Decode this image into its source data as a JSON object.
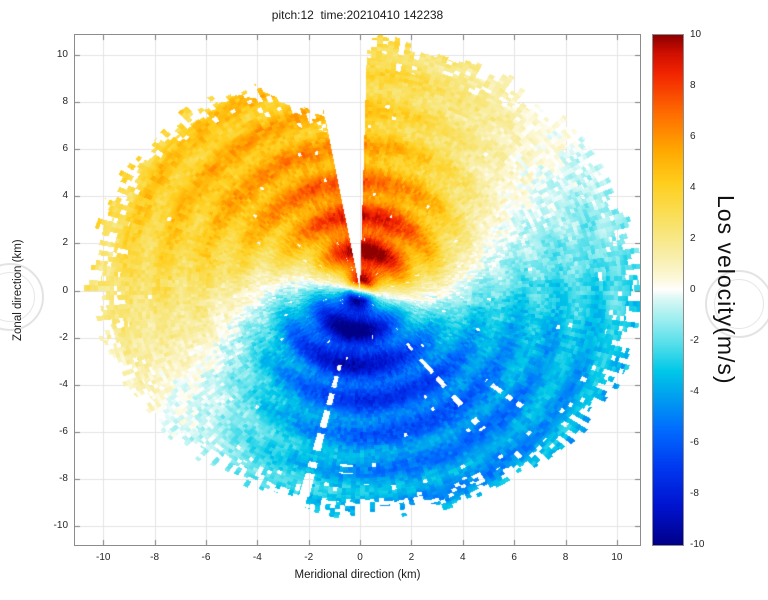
{
  "chart_data": {
    "type": "heatmap",
    "subtype": "doppler-lidar-ppi-scan",
    "title": "pitch:12  time:20210410 142238",
    "xlabel": "Meridional direction (km)",
    "ylabel": "Zonal direction (km)",
    "xlim": [
      -11.1,
      10.9
    ],
    "ylim": [
      -10.8,
      10.85
    ],
    "xticks": [
      -10,
      -8,
      -6,
      -4,
      -2,
      0,
      2,
      4,
      6,
      8,
      10
    ],
    "yticks": [
      -10,
      -8,
      -6,
      -4,
      -2,
      0,
      2,
      4,
      6,
      8,
      10
    ],
    "grid": true,
    "colorbar": {
      "label": "Los velocity(m/s)",
      "range": [
        -10,
        10
      ],
      "ticks": [
        10,
        8,
        6,
        4,
        2,
        0,
        -2,
        -4,
        -6,
        -8,
        -10
      ]
    },
    "colormap": {
      "values": [
        -10,
        -8.5,
        -7,
        -5.5,
        -4.2,
        -3.2,
        -2.2,
        -1.2,
        -0.4,
        0,
        0.4,
        1.2,
        2.2,
        3.2,
        4.2,
        5.5,
        7,
        8.5,
        9.3,
        10
      ],
      "colors": [
        "#000089",
        "#0014d0",
        "#0038f0",
        "#006cff",
        "#00a0f0",
        "#00c8e8",
        "#4fdeea",
        "#9aeef0",
        "#d6f8f5",
        "#ffffff",
        "#fdfadf",
        "#f9f0b0",
        "#f8e77e",
        "#fbdc4c",
        "#ffcf1e",
        "#ffa800",
        "#ff6a00",
        "#f32500",
        "#d01000",
        "#8f0000"
      ]
    },
    "field_model": {
      "description": "Line-of-sight velocity PPI scan: v(r,az) = A(r)*(1+ring)*cos(az-dir(r)) + speckle; az clockwise from +y axis. Positive (red) lobe toward N/NNW, negative (blue) lobe toward S/SSE.",
      "radius_km": [
        0,
        1,
        2,
        3,
        4,
        5,
        6,
        7,
        8,
        9,
        10,
        11.5
      ],
      "amplitude_ms": [
        9.5,
        9.5,
        9.0,
        8.0,
        7.0,
        6.2,
        5.6,
        5.1,
        4.7,
        4.4,
        4.1,
        3.8
      ],
      "lobe_azimuth_deg": [
        15,
        13,
        10,
        5,
        -5,
        -15,
        -23,
        -30,
        -33,
        -35,
        -37,
        -38
      ],
      "ring_modulation": {
        "amplitude": 0.18,
        "wavenumber": 4.2,
        "phase": 0.6
      },
      "speckle_ms": 1.2,
      "beam_deg": 1.2,
      "gate_km": 0.15,
      "max_range_azimuth_deg": [
        -180,
        -150,
        -120,
        -90,
        -60,
        -40,
        -25,
        -15,
        -10,
        2,
        15,
        30,
        60,
        90,
        120,
        150,
        180
      ],
      "max_range_km": [
        9.3,
        9.0,
        9.6,
        10.3,
        10.2,
        9.9,
        9.3,
        7.8,
        7.5,
        10.7,
        10.3,
        10.4,
        10.5,
        10.9,
        10.3,
        9.6,
        9.3
      ],
      "edge_jitter_km": 0.9,
      "gaps": [
        {
          "type": "wedge",
          "az_from": -10.5,
          "az_to": 1.5
        },
        {
          "type": "dashed-ray",
          "az_center": -166,
          "az_width": 2.6,
          "r_from": 3.2,
          "r_to": 9.4,
          "duty": 0.6
        },
        {
          "type": "dashed-ray",
          "az_center": 141,
          "az_width": 2.2,
          "r_from": 2.9,
          "r_to": 7.6,
          "duty": 0.55
        },
        {
          "type": "dashed-ray",
          "az_center": 128,
          "az_width": 1.6,
          "r_from": 6.2,
          "r_to": 8.3,
          "duty": 0.4
        },
        {
          "type": "dashed-ray",
          "az_center": -176,
          "az_width": 4.0,
          "r_from": 7.4,
          "r_to": 7.8,
          "duty": 0.7
        }
      ]
    }
  },
  "decorations": {
    "left_watermark": "faint-circular-seal",
    "right_watermark": "faint-circular-seal"
  }
}
